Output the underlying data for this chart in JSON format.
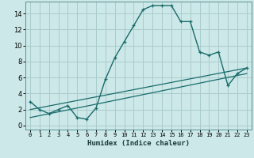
{
  "xlabel": "Humidex (Indice chaleur)",
  "bg_color": "#cce8e8",
  "grid_color": "#aacccc",
  "line_color": "#1a6b6b",
  "xlim": [
    -0.5,
    23.5
  ],
  "ylim": [
    -0.5,
    15.5
  ],
  "xticks": [
    0,
    1,
    2,
    3,
    4,
    5,
    6,
    7,
    8,
    9,
    10,
    11,
    12,
    13,
    14,
    15,
    16,
    17,
    18,
    19,
    20,
    21,
    22,
    23
  ],
  "yticks": [
    0,
    2,
    4,
    6,
    8,
    10,
    12,
    14
  ],
  "line1_x": [
    0,
    1,
    2,
    3,
    4,
    5,
    6,
    7,
    8,
    9,
    10,
    11,
    12,
    13,
    14,
    15,
    16,
    17,
    18,
    19,
    20,
    21,
    22,
    23
  ],
  "line1_y": [
    3,
    2,
    1.5,
    2,
    2.5,
    1,
    0.8,
    2.2,
    5.8,
    8.5,
    10.5,
    12.5,
    14.5,
    15.0,
    15.0,
    15.0,
    13.0,
    13.0,
    9.2,
    8.8,
    9.2,
    5.0,
    6.5,
    7.2
  ],
  "line2_x": [
    0,
    23
  ],
  "line2_y": [
    2.0,
    7.2
  ],
  "line3_x": [
    0,
    23
  ],
  "line3_y": [
    1.0,
    6.5
  ]
}
